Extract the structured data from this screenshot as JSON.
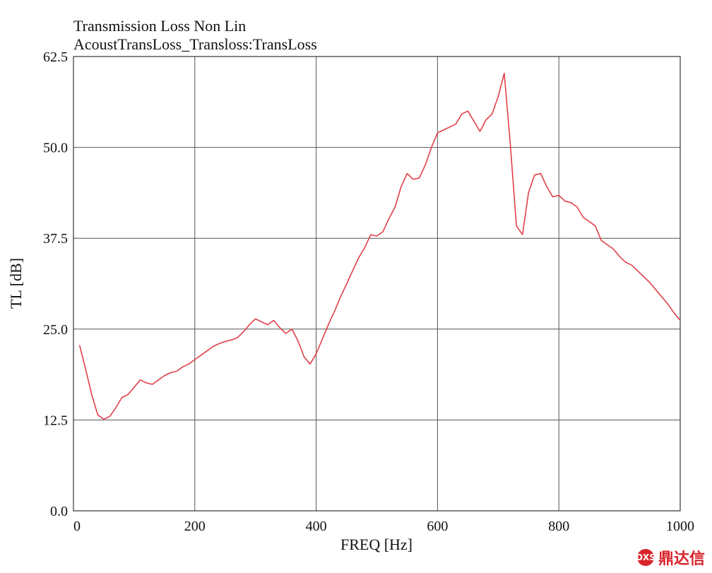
{
  "chart_data": {
    "type": "line",
    "title": "Transmission Loss Non Lin",
    "subtitle": "AcoustTransLoss_Transloss:TransLoss",
    "xlabel": "FREQ [Hz]",
    "ylabel": "TL [dB]",
    "xlim": [
      0,
      1000
    ],
    "ylim": [
      0,
      62.5
    ],
    "x_ticks": [
      0,
      200,
      400,
      600,
      800,
      1000
    ],
    "x_tick_labels": [
      "0",
      "200",
      "400",
      "600",
      "800",
      "1000"
    ],
    "y_ticks": [
      0,
      12.5,
      25,
      37.5,
      50,
      62.5
    ],
    "y_tick_labels": [
      "0.0",
      "12.5",
      "25.0",
      "37.5",
      "50.0",
      "62.5"
    ],
    "grid": true,
    "line_color": "#e0404a",
    "series": [
      {
        "x": [
          10,
          20,
          30,
          40,
          50,
          60,
          70,
          80,
          90,
          100,
          110,
          120,
          130,
          140,
          150,
          160,
          170,
          180,
          190,
          200,
          210,
          220,
          230,
          240,
          250,
          260,
          270,
          280,
          290,
          300,
          310,
          320,
          330,
          340,
          350,
          360,
          370,
          380,
          390,
          400,
          410,
          420,
          430,
          440,
          450,
          460,
          470,
          480,
          490,
          500,
          510,
          520,
          530,
          540,
          550,
          560,
          570,
          580,
          590,
          600,
          610,
          620,
          630,
          640,
          650,
          660,
          670,
          680,
          690,
          700,
          710,
          720,
          730,
          740,
          750,
          760,
          770,
          780,
          790,
          800,
          810,
          820,
          830,
          840,
          850,
          860,
          870,
          880,
          890,
          900,
          910,
          920,
          930,
          940,
          950,
          960,
          970,
          980,
          990,
          1000
        ],
        "y": [
          22.8,
          19.5,
          16.0,
          13.2,
          12.6,
          13.0,
          14.2,
          15.6,
          16.0,
          17.0,
          18.0,
          17.6,
          17.4,
          18.0,
          18.6,
          19.0,
          19.2,
          19.8,
          20.2,
          20.8,
          21.4,
          22.0,
          22.6,
          23.0,
          23.3,
          23.5,
          23.8,
          24.6,
          25.6,
          26.4,
          26.0,
          25.6,
          26.2,
          25.2,
          24.4,
          25.0,
          23.4,
          21.2,
          20.2,
          21.6,
          23.6,
          25.6,
          27.4,
          29.4,
          31.2,
          33.0,
          34.8,
          36.2,
          38.0,
          37.8,
          38.4,
          40.2,
          41.8,
          44.6,
          46.4,
          45.6,
          45.8,
          47.6,
          50.0,
          52.0,
          52.4,
          52.8,
          53.2,
          54.6,
          55.0,
          53.6,
          52.2,
          53.8,
          54.6,
          57.0,
          60.2,
          50.4,
          39.2,
          38.0,
          43.8,
          46.2,
          46.4,
          44.6,
          43.2,
          43.4,
          42.6,
          42.4,
          41.8,
          40.4,
          39.8,
          39.2,
          37.2,
          36.6,
          36.0,
          35.0,
          34.2,
          33.8,
          33.0,
          32.2,
          31.4,
          30.4,
          29.4,
          28.4,
          27.2,
          26.2
        ]
      }
    ]
  },
  "watermark": {
    "logo_text": "DXS",
    "text": "鼎达信"
  }
}
